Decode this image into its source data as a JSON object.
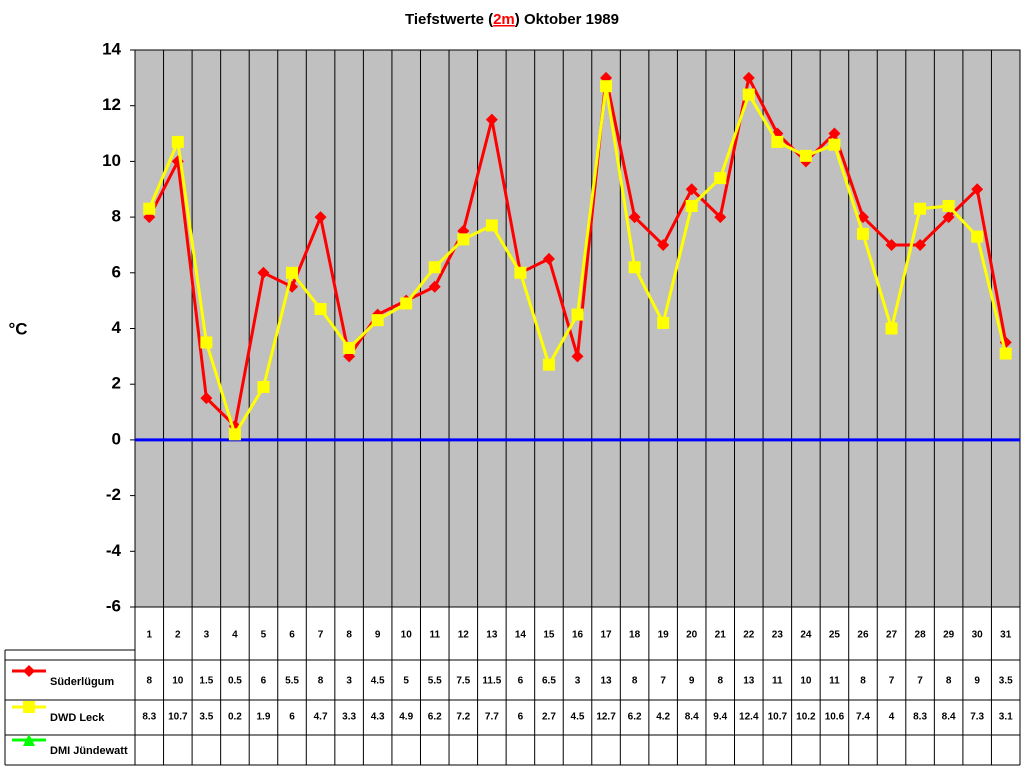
{
  "chart_data": {
    "type": "line",
    "title_parts": [
      "Tiefstwerte (",
      "2m",
      ") Oktober 1989"
    ],
    "y_label": "°C",
    "categories": [
      "1",
      "2",
      "3",
      "4",
      "5",
      "6",
      "7",
      "8",
      "9",
      "10",
      "11",
      "12",
      "13",
      "14",
      "15",
      "16",
      "17",
      "18",
      "19",
      "20",
      "21",
      "22",
      "23",
      "24",
      "25",
      "26",
      "27",
      "28",
      "29",
      "30",
      "31"
    ],
    "series": [
      {
        "name": "Süderlügum",
        "color": "#ff0000",
        "marker": "diamond",
        "values": [
          8,
          10,
          1.5,
          0.5,
          6,
          5.5,
          8,
          3,
          4.5,
          5,
          5.5,
          7.5,
          11.5,
          6,
          6.5,
          3,
          13,
          8,
          7,
          9,
          8,
          13,
          11,
          10,
          11,
          8,
          7,
          7,
          8,
          9,
          3.5
        ]
      },
      {
        "name": "DWD Leck",
        "color": "#ffff00",
        "marker": "square",
        "values": [
          8.3,
          10.7,
          3.5,
          0.2,
          1.9,
          6,
          4.7,
          3.3,
          4.3,
          4.9,
          6.2,
          7.2,
          7.7,
          6,
          2.7,
          4.5,
          12.7,
          6.2,
          4.2,
          8.4,
          9.4,
          12.4,
          10.7,
          10.2,
          10.6,
          7.4,
          4,
          8.3,
          8.4,
          7.3,
          3.1
        ]
      },
      {
        "name": "DMI Jündewatt",
        "color": "#00ff00",
        "marker": "triangle",
        "values": [
          null,
          null,
          null,
          null,
          null,
          null,
          null,
          null,
          null,
          null,
          null,
          null,
          null,
          null,
          null,
          null,
          null,
          null,
          null,
          null,
          null,
          null,
          null,
          null,
          null,
          null,
          null,
          null,
          null,
          null,
          null
        ]
      }
    ],
    "ylim": [
      -6,
      14
    ],
    "yticks": [
      -6,
      -4,
      -2,
      0,
      2,
      4,
      6,
      8,
      10,
      12,
      14
    ],
    "baseline": 0,
    "baseline_color": "#0000ff",
    "plot_background": "#c0c0c0",
    "data_table": true
  }
}
